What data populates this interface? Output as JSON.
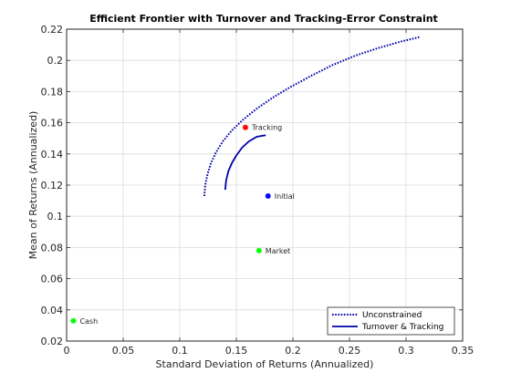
{
  "chart_data": {
    "type": "line",
    "title": "Efficient Frontier with Turnover and Tracking-Error Constraint",
    "xlabel": "Standard Deviation of Returns (Annualized)",
    "ylabel": "Mean of Returns (Annualized)",
    "xlim": [
      0,
      0.35
    ],
    "ylim": [
      0.02,
      0.22
    ],
    "xticks": [
      0,
      0.05,
      0.1,
      0.15,
      0.2,
      0.25,
      0.3,
      0.35
    ],
    "xtick_labels": [
      "0",
      "0.05",
      "0.1",
      "0.15",
      "0.2",
      "0.25",
      "0.3",
      "0.35"
    ],
    "yticks": [
      0.02,
      0.04,
      0.06,
      0.08,
      0.1,
      0.12,
      0.14,
      0.16,
      0.18,
      0.2,
      0.22
    ],
    "ytick_labels": [
      "0.02",
      "0.04",
      "0.06",
      "0.08",
      "0.1",
      "0.12",
      "0.14",
      "0.16",
      "0.18",
      "0.2",
      "0.22"
    ],
    "grid": true,
    "legend_position": "bottom-right",
    "series": [
      {
        "name": "Unconstrained",
        "style": "dotted",
        "color": "#0000aa",
        "x": [
          0.1217,
          0.1225,
          0.1245,
          0.1275,
          0.132,
          0.138,
          0.146,
          0.156,
          0.168,
          0.182,
          0.198,
          0.216,
          0.235,
          0.255,
          0.276,
          0.295,
          0.312
        ],
        "y": [
          0.113,
          0.12,
          0.127,
          0.134,
          0.141,
          0.148,
          0.155,
          0.162,
          0.169,
          0.176,
          0.183,
          0.19,
          0.197,
          0.203,
          0.208,
          0.212,
          0.215
        ]
      },
      {
        "name": "Turnover & Tracking",
        "style": "solid",
        "color": "#0000aa",
        "x": [
          0.1402,
          0.141,
          0.143,
          0.146,
          0.15,
          0.155,
          0.161,
          0.168,
          0.176
        ],
        "y": [
          0.117,
          0.123,
          0.129,
          0.134,
          0.139,
          0.144,
          0.148,
          0.151,
          0.152
        ]
      }
    ],
    "points": [
      {
        "label": "Tracking",
        "x": 0.158,
        "y": 0.157,
        "color": "#ff0000"
      },
      {
        "label": "Initial",
        "x": 0.178,
        "y": 0.113,
        "color": "#0000ff"
      },
      {
        "label": "Market",
        "x": 0.17,
        "y": 0.078,
        "color": "#00ff00"
      },
      {
        "label": "Cash",
        "x": 0.006,
        "y": 0.033,
        "color": "#00ff00"
      }
    ]
  }
}
